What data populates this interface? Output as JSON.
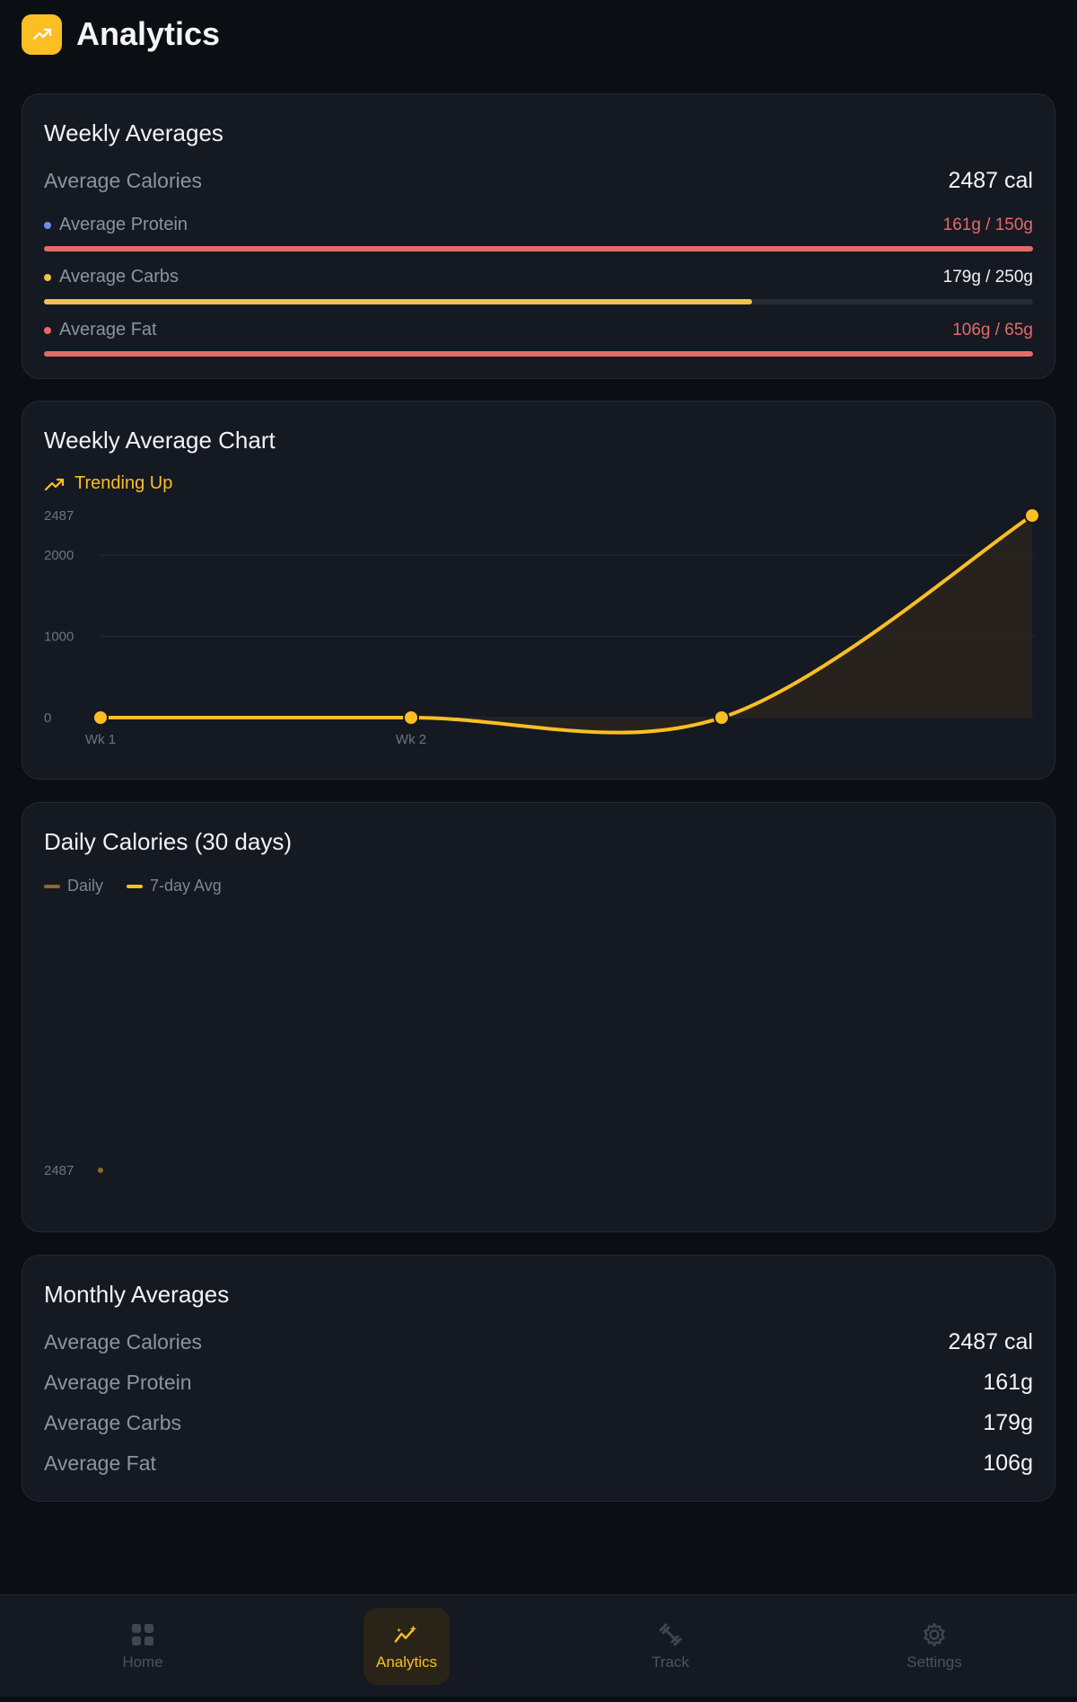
{
  "header": {
    "title": "Analytics",
    "icon": "analytics-logo-icon"
  },
  "colors": {
    "accent": "#fbbf24",
    "protein": "#6d8cf0",
    "carbs": "#f2c14e",
    "fat": "#e46a6a",
    "over": "#e46a6a"
  },
  "weekly": {
    "title": "Weekly Averages",
    "calories_label": "Average Calories",
    "calories_value": "2487 cal",
    "macros": [
      {
        "label": "Average Protein",
        "value": "161g / 150g",
        "progress": 1.0,
        "over": true
      },
      {
        "label": "Average Carbs",
        "value": "179g / 250g",
        "progress": 0.716,
        "over": false
      },
      {
        "label": "Average Fat",
        "value": "106g / 65g",
        "progress": 1.0,
        "over": true
      }
    ]
  },
  "weekly_chart": {
    "title": "Weekly Average Chart",
    "trend_label": "Trending Up",
    "chart_data": {
      "type": "line",
      "x": [
        "Wk 1",
        "Wk 2",
        "",
        ""
      ],
      "values": [
        0,
        0,
        0,
        2487
      ],
      "y_ticks": [
        "2487",
        "2000",
        "1000",
        "0"
      ],
      "ylim": [
        0,
        2487
      ],
      "grid": true
    }
  },
  "daily_chart": {
    "title": "Daily Calories (30 days)",
    "legend": [
      "Daily",
      "7-day Avg"
    ],
    "chart_data": {
      "type": "line",
      "series": [
        {
          "name": "Daily",
          "values": [
            2487
          ]
        },
        {
          "name": "7-day Avg",
          "values": [
            2487
          ]
        }
      ],
      "y_ticks": [
        "2487"
      ]
    }
  },
  "monthly": {
    "title": "Monthly Averages",
    "rows": [
      {
        "label": "Average Calories",
        "value": "2487 cal"
      },
      {
        "label": "Average Protein",
        "value": "161g"
      },
      {
        "label": "Average Carbs",
        "value": "179g"
      },
      {
        "label": "Average Fat",
        "value": "106g"
      }
    ]
  },
  "nav": {
    "items": [
      {
        "label": "Home",
        "icon": "home-grid-icon"
      },
      {
        "label": "Analytics",
        "icon": "analytics-icon"
      },
      {
        "label": "Track",
        "icon": "dumbbell-icon"
      },
      {
        "label": "Settings",
        "icon": "gear-icon"
      }
    ],
    "active": "Analytics"
  }
}
